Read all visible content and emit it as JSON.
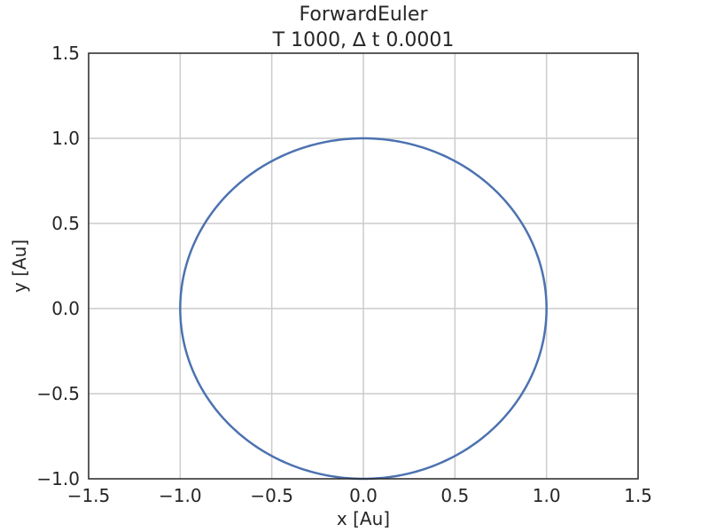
{
  "chart_data": {
    "type": "line",
    "title": "ForwardEuler",
    "subtitle": "T 1000, ∆ t 0.0001",
    "xlabel": "x [Au]",
    "ylabel": "y [Au]",
    "xlim": [
      -1.5,
      1.5
    ],
    "ylim": [
      -1.0,
      1.5
    ],
    "x_ticks": [
      "−1.5",
      "−1.0",
      "−0.5",
      "0.0",
      "0.5",
      "1.0",
      "1.5"
    ],
    "y_ticks": [
      "−1.0",
      "−0.5",
      "0.0",
      "0.5",
      "1.0",
      "1.5"
    ],
    "grid": true,
    "series": [
      {
        "color": "#4c72b0",
        "shape": "circle",
        "center": [
          0.0,
          0.0
        ],
        "radius": 1.0
      }
    ]
  }
}
